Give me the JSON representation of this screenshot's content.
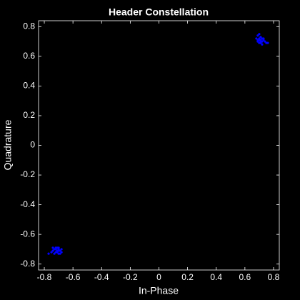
{
  "chart_data": {
    "type": "scatter",
    "title": "Header Constellation",
    "xlabel": "In-Phase",
    "ylabel": "Quadrature",
    "color": "#0000ff",
    "x": [
      0.69,
      0.7,
      0.71,
      0.72,
      0.7,
      0.73,
      0.75,
      0.69,
      0.71,
      0.72,
      0.68,
      0.7,
      0.74,
      0.71,
      0.73,
      0.7,
      0.72,
      0.69,
      0.71,
      0.76,
      -0.72,
      -0.7,
      -0.71,
      -0.73,
      -0.69,
      -0.72,
      -0.7,
      -0.74,
      -0.68,
      -0.71,
      -0.75,
      -0.77,
      -0.69,
      -0.72,
      -0.7,
      -0.73,
      -0.71,
      -0.68,
      -0.74,
      -0.7
    ],
    "values": [
      0.74,
      0.72,
      0.71,
      0.7,
      0.69,
      0.71,
      0.69,
      0.7,
      0.73,
      0.68,
      0.72,
      0.75,
      0.7,
      0.69,
      0.72,
      0.71,
      0.72,
      0.71,
      0.7,
      0.69,
      -0.69,
      -0.7,
      -0.71,
      -0.7,
      -0.71,
      -0.72,
      -0.73,
      -0.71,
      -0.7,
      -0.69,
      -0.72,
      -0.73,
      -0.73,
      -0.7,
      -0.69,
      -0.73,
      -0.72,
      -0.72,
      -0.69,
      -0.71
    ],
    "xlim": [
      -0.84,
      0.84
    ],
    "ylim": [
      -0.84,
      0.84
    ],
    "xticks": [
      -0.8,
      -0.6,
      -0.4,
      -0.2,
      0,
      0.2,
      0.4,
      0.6,
      0.8
    ],
    "yticks": [
      -0.8,
      -0.6,
      -0.4,
      -0.2,
      0,
      0.2,
      0.4,
      0.6,
      0.8
    ]
  }
}
